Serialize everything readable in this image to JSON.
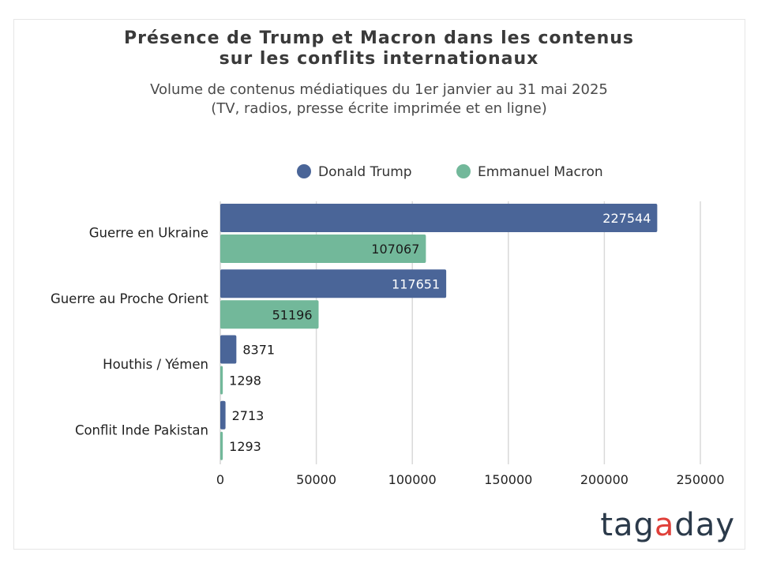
{
  "chart_data": {
    "type": "bar",
    "orientation": "horizontal",
    "title_lines": [
      "Présence de Trump et Macron dans les contenus",
      "sur les conflits internationaux"
    ],
    "subtitle_lines": [
      "Volume de contenus médiatiques du 1er janvier au 31 mai 2025",
      "(TV, radios, presse écrite imprimée et en ligne)"
    ],
    "categories": [
      "Guerre en Ukraine",
      "Guerre au Proche Orient",
      "Houthis / Yémen",
      "Conflit Inde Pakistan"
    ],
    "series": [
      {
        "name": "Donald Trump",
        "color": "#4a6598",
        "values": [
          227544,
          117651,
          8371,
          2713
        ]
      },
      {
        "name": "Emmanuel Macron",
        "color": "#72b89a",
        "values": [
          107067,
          51196,
          1298,
          1293
        ]
      }
    ],
    "xlim": [
      0,
      250000
    ],
    "xticks": [
      0,
      50000,
      100000,
      150000,
      200000,
      250000
    ],
    "grid": true,
    "legend_position": "top",
    "data_labels": true
  },
  "brand": {
    "logo_text": "tagaday",
    "logo_color": "#2b3a4a",
    "logo_accent": "#e0403a"
  }
}
